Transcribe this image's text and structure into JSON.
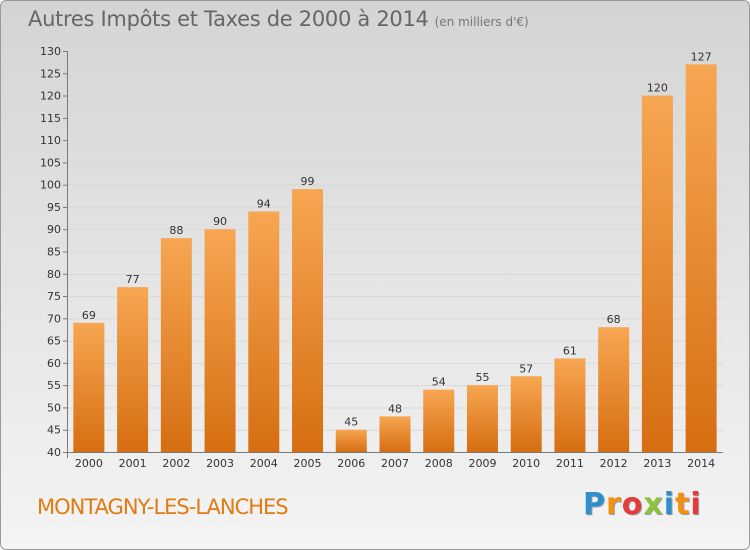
{
  "header": {
    "title": "Autres Impôts et Taxes de 2000 à 2014",
    "unit": "(en milliers d'€)"
  },
  "footer": {
    "commune": "MONTAGNY-LES-LANCHES",
    "logo_letters": [
      "P",
      "r",
      "o",
      "x",
      "i",
      "t",
      "i"
    ],
    "logo_colors": [
      "#2f8fcc",
      "#f29111",
      "#e53b3b",
      "#8dc43f",
      "#2f8fcc",
      "#f29111",
      "#e53b3b"
    ]
  },
  "colors": {
    "bar_top": "#f7a652",
    "bar_bottom": "#d66e11",
    "commune_text": "#e27b10"
  },
  "chart_data": {
    "type": "bar",
    "title": "Autres Impôts et Taxes de 2000 à 2014",
    "subtitle": "(en milliers d'€)",
    "categories": [
      "2000",
      "2001",
      "2002",
      "2003",
      "2004",
      "2005",
      "2006",
      "2007",
      "2008",
      "2009",
      "2010",
      "2011",
      "2012",
      "2013",
      "2014"
    ],
    "values": [
      69,
      77,
      88,
      90,
      94,
      99,
      45,
      48,
      54,
      55,
      57,
      61,
      68,
      120,
      127
    ],
    "ylim": [
      40,
      130
    ],
    "yticks": [
      40,
      45,
      50,
      55,
      60,
      65,
      70,
      75,
      80,
      85,
      90,
      95,
      100,
      105,
      110,
      115,
      120,
      125,
      130
    ],
    "grid": true,
    "xlabel": "",
    "ylabel": ""
  }
}
